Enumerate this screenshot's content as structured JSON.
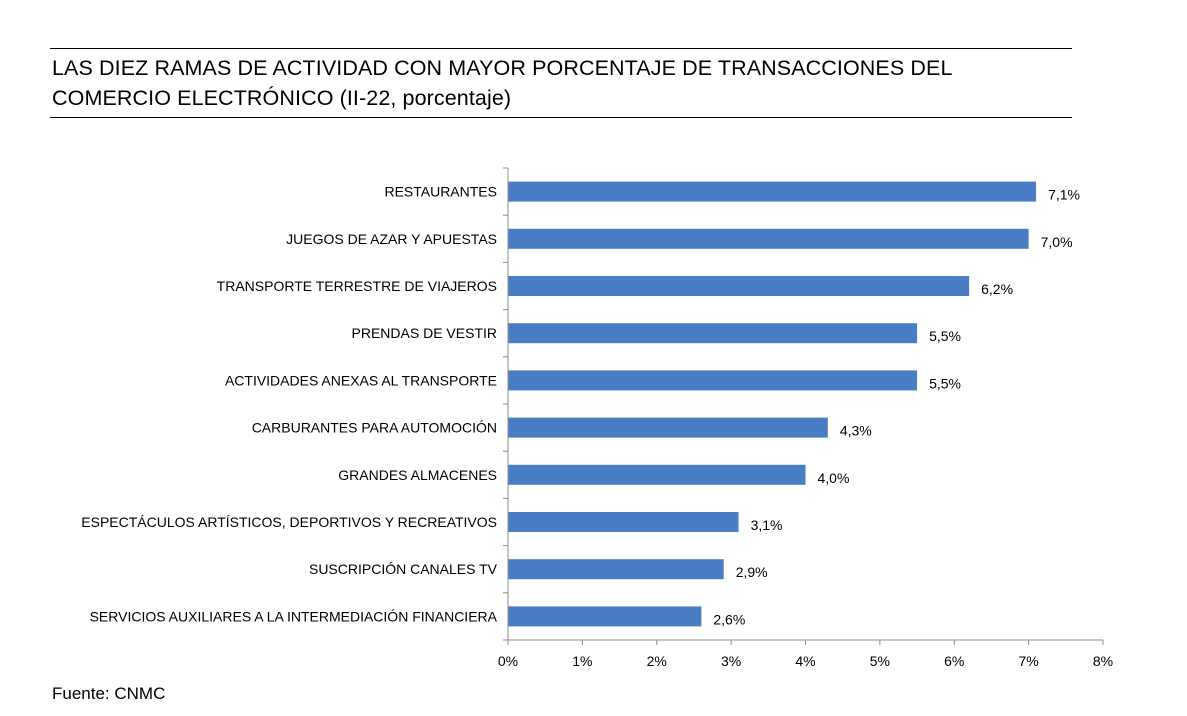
{
  "title": {
    "line1": "LAS DIEZ RAMAS DE ACTIVIDAD CON MAYOR PORCENTAJE DE TRANSACCIONES DEL",
    "line2": "COMERCIO ELECTRÓNICO (II-22, porcentaje)"
  },
  "source": "Fuente: CNMC",
  "chart_data": {
    "type": "bar",
    "orientation": "horizontal",
    "categories": [
      "RESTAURANTES",
      "JUEGOS DE AZAR Y APUESTAS",
      "TRANSPORTE TERRESTRE DE VIAJEROS",
      "PRENDAS DE VESTIR",
      "ACTIVIDADES ANEXAS AL TRANSPORTE",
      "CARBURANTES PARA AUTOMOCIÓN",
      "GRANDES ALMACENES",
      "ESPECTÁCULOS ARTÍSTICOS, DEPORTIVOS Y RECREATIVOS",
      "SUSCRIPCIÓN CANALES TV",
      "SERVICIOS AUXILIARES A LA INTERMEDIACIÓN FINANCIERA"
    ],
    "values": [
      7.1,
      7.0,
      6.2,
      5.5,
      5.5,
      4.3,
      4.0,
      3.1,
      2.9,
      2.6
    ],
    "data_labels": [
      "7,1%",
      "7,0%",
      "6,2%",
      "5,5%",
      "5,5%",
      "4,3%",
      "4,0%",
      "3,1%",
      "2,9%",
      "2,6%"
    ],
    "xlim": [
      0,
      8
    ],
    "xticks": [
      "0%",
      "1%",
      "2%",
      "3%",
      "4%",
      "5%",
      "6%",
      "7%",
      "8%"
    ],
    "bar_color": "#4A7EC4",
    "grid": false,
    "legend": "none"
  }
}
